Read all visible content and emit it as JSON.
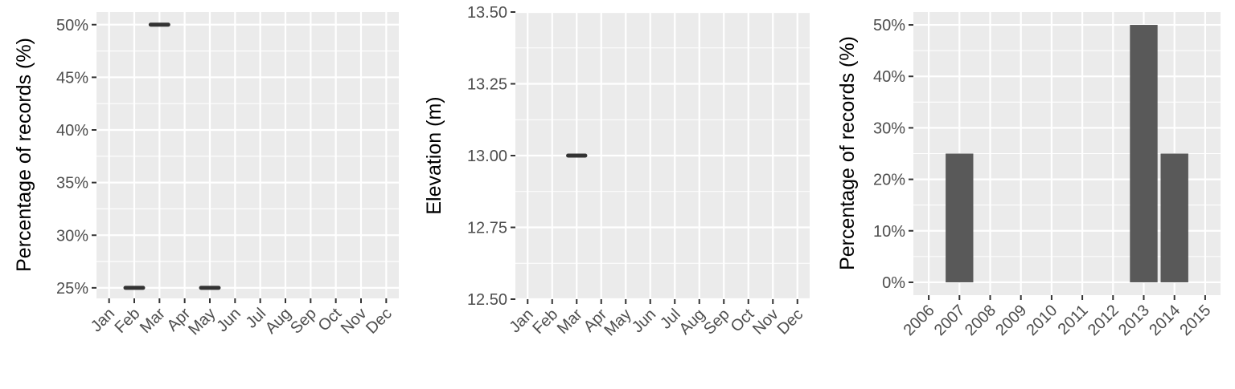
{
  "chart_data": [
    {
      "type": "line",
      "title": "",
      "xlabel": "",
      "ylabel": "Percentage of records (%)",
      "categories": [
        "Jan",
        "Feb",
        "Mar",
        "Apr",
        "May",
        "Jun",
        "Jul",
        "Aug",
        "Sep",
        "Oct",
        "Nov",
        "Dec"
      ],
      "x": [
        "Feb",
        "Mar",
        "May"
      ],
      "y": [
        25,
        50,
        25
      ],
      "yticks": [
        25,
        30,
        35,
        40,
        45,
        50
      ],
      "ytick_labels": [
        "25%",
        "30%",
        "35%",
        "40%",
        "45%",
        "50%"
      ],
      "ylim": [
        24,
        51.2
      ],
      "grid": true,
      "legend": "none"
    },
    {
      "type": "line",
      "title": "",
      "xlabel": "",
      "ylabel": "Elevation (m)",
      "categories": [
        "Jan",
        "Feb",
        "Mar",
        "Apr",
        "May",
        "Jun",
        "Jul",
        "Aug",
        "Sep",
        "Oct",
        "Nov",
        "Dec"
      ],
      "x": [
        "Mar"
      ],
      "y": [
        13.0
      ],
      "yticks": [
        12.5,
        12.75,
        13.0,
        13.25,
        13.5
      ],
      "ytick_labels": [
        "12.50",
        "12.75",
        "13.00",
        "13.25",
        "13.50"
      ],
      "ylim": [
        12.5,
        13.5
      ],
      "grid": true,
      "legend": "none"
    },
    {
      "type": "bar",
      "title": "",
      "xlabel": "",
      "ylabel": "Percentage of records (%)",
      "categories": [
        "2006",
        "2007",
        "2008",
        "2009",
        "2010",
        "2011",
        "2012",
        "2013",
        "2014",
        "2015"
      ],
      "values": [
        0,
        25,
        0,
        0,
        0,
        0,
        0,
        50,
        25,
        0
      ],
      "yticks": [
        0,
        10,
        20,
        30,
        40,
        50
      ],
      "ytick_labels": [
        "0%",
        "10%",
        "20%",
        "30%",
        "40%",
        "50%"
      ],
      "ylim": [
        -2.5,
        52.5
      ],
      "grid": true,
      "legend": "none"
    }
  ]
}
